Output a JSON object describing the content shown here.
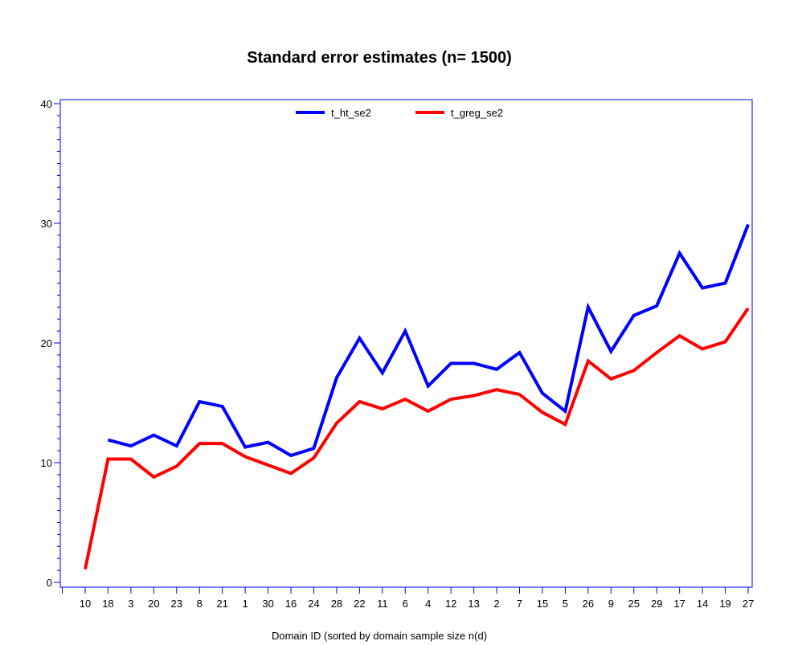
{
  "chart_data": {
    "type": "line",
    "title": "Standard error estimates (n= 1500)",
    "xlabel": "Domain ID (sorted by domain sample size n(d)",
    "ylabel": "",
    "ylim": [
      0,
      40
    ],
    "yticks": [
      0,
      10,
      20,
      30,
      40
    ],
    "categories": [
      "10",
      "18",
      "3",
      "20",
      "23",
      "8",
      "21",
      "1",
      "30",
      "16",
      "24",
      "28",
      "22",
      "11",
      "6",
      "4",
      "12",
      "13",
      "2",
      "7",
      "15",
      "5",
      "26",
      "9",
      "25",
      "29",
      "17",
      "14",
      "19",
      "27"
    ],
    "series": [
      {
        "name": "t_ht_se2",
        "color": "#0000ff",
        "values": [
          null,
          11.9,
          11.4,
          12.3,
          11.4,
          15.1,
          14.7,
          11.3,
          11.7,
          10.6,
          11.2,
          17.1,
          20.4,
          17.5,
          21.0,
          16.4,
          18.3,
          18.3,
          17.8,
          19.2,
          15.8,
          14.3,
          23.0,
          19.3,
          22.3,
          23.1,
          27.5,
          24.6,
          25.0,
          29.9
        ]
      },
      {
        "name": "t_greg_se2",
        "color": "#ff0000",
        "values": [
          1.1,
          10.3,
          10.3,
          8.8,
          9.7,
          11.6,
          11.6,
          10.5,
          9.8,
          9.1,
          10.4,
          13.3,
          15.1,
          14.5,
          15.3,
          14.3,
          15.3,
          15.6,
          16.1,
          15.7,
          14.2,
          13.2,
          18.5,
          17.0,
          17.7,
          19.2,
          20.6,
          19.5,
          20.1,
          22.9
        ]
      }
    ],
    "grid": false,
    "legend": "top-center",
    "axis_color": "#0000ff"
  }
}
